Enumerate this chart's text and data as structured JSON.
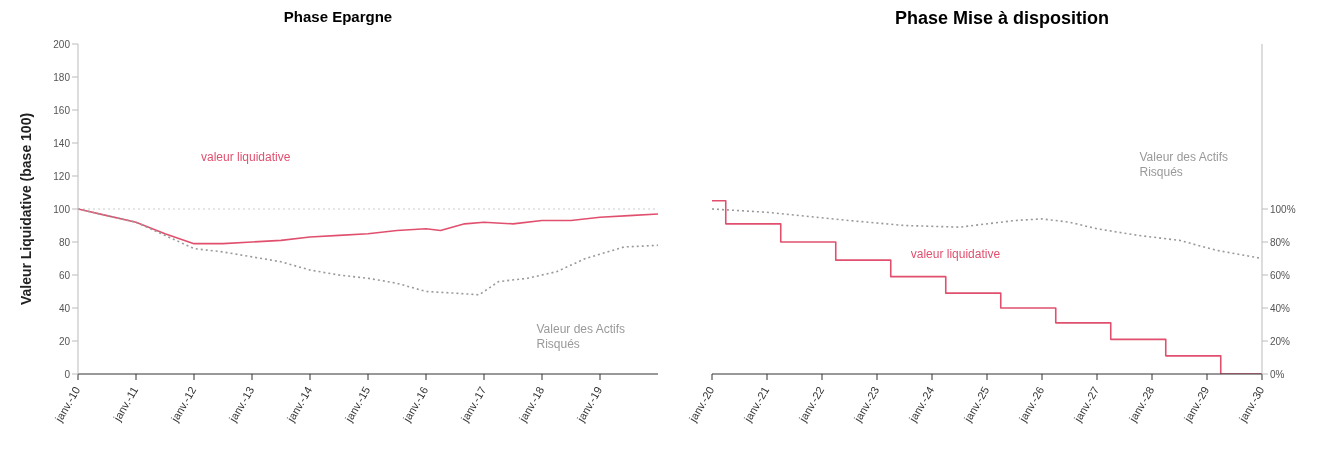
{
  "chart_data": [
    {
      "type": "line",
      "title": "Phase Epargne",
      "ylabel": "Valeur Liquidative (base 100)",
      "xlim": [
        "2010-01",
        "2020-01"
      ],
      "xticks": [
        {
          "value": "2010-01",
          "label": "janv.-10"
        },
        {
          "value": "2011-01",
          "label": "janv.-11"
        },
        {
          "value": "2012-01",
          "label": "janv.-12"
        },
        {
          "value": "2013-01",
          "label": "janv.-13"
        },
        {
          "value": "2014-01",
          "label": "janv.-14"
        },
        {
          "value": "2015-01",
          "label": "janv.-15"
        },
        {
          "value": "2016-01",
          "label": "janv.-16"
        },
        {
          "value": "2017-01",
          "label": "janv.-17"
        },
        {
          "value": "2018-01",
          "label": "janv.-18"
        },
        {
          "value": "2019-01",
          "label": "janv.-19"
        }
      ],
      "ylim": [
        0,
        200
      ],
      "yticks": [
        0,
        20,
        40,
        60,
        80,
        100,
        120,
        140,
        160,
        180,
        200
      ],
      "grid": false,
      "legend": false,
      "ref_lines": [
        {
          "axis": "y",
          "value": 100,
          "color": "#cccccc",
          "line_style": "dotted"
        }
      ],
      "series": [
        {
          "name": "valeur liquidative",
          "color": "#e0506e",
          "line_style": "solid",
          "x": [
            "2010-01",
            "2010-07",
            "2011-01",
            "2011-07",
            "2012-01",
            "2012-07",
            "2013-01",
            "2013-07",
            "2014-01",
            "2014-07",
            "2015-01",
            "2015-07",
            "2016-01",
            "2016-04",
            "2016-09",
            "2017-01",
            "2017-07",
            "2018-01",
            "2018-07",
            "2019-01",
            "2019-07",
            "2020-01"
          ],
          "values": [
            100,
            96,
            92,
            85,
            79,
            79,
            80,
            81,
            83,
            84,
            85,
            87,
            88,
            87,
            91,
            92,
            91,
            93,
            93,
            95,
            96,
            97
          ]
        },
        {
          "name": "Valeur des Actifs Risqués",
          "color": "#999999",
          "line_style": "dotted",
          "x": [
            "2010-01",
            "2011-01",
            "2012-01",
            "2012-07",
            "2013-01",
            "2013-07",
            "2014-01",
            "2014-07",
            "2015-01",
            "2015-07",
            "2016-01",
            "2016-07",
            "2016-12",
            "2017-04",
            "2017-10",
            "2018-04",
            "2018-10",
            "2019-06",
            "2020-01"
          ],
          "values": [
            100,
            92,
            76,
            74,
            71,
            68,
            63,
            60,
            58,
            55,
            50,
            49,
            48,
            56,
            58,
            62,
            70,
            77,
            78
          ]
        }
      ]
    },
    {
      "type": "step",
      "title": "Phase Mise à disposition",
      "xlim": [
        "2020-01",
        "2030-01"
      ],
      "xticks": [
        {
          "value": "2020-01",
          "label": "janv.-20"
        },
        {
          "value": "2021-01",
          "label": "janv.-21"
        },
        {
          "value": "2022-01",
          "label": "janv.-22"
        },
        {
          "value": "2023-01",
          "label": "janv.-23"
        },
        {
          "value": "2024-01",
          "label": "janv.-24"
        },
        {
          "value": "2025-01",
          "label": "janv.-25"
        },
        {
          "value": "2026-01",
          "label": "janv.-26"
        },
        {
          "value": "2027-01",
          "label": "janv.-27"
        },
        {
          "value": "2028-01",
          "label": "janv.-28"
        },
        {
          "value": "2029-01",
          "label": "janv.-29"
        },
        {
          "value": "2030-01",
          "label": "janv.-30"
        }
      ],
      "ylim": [
        0,
        200
      ],
      "yticks": [
        {
          "value": 0,
          "label": "0%"
        },
        {
          "value": 20,
          "label": "20%"
        },
        {
          "value": 40,
          "label": "40%"
        },
        {
          "value": 60,
          "label": "60%"
        },
        {
          "value": 80,
          "label": "80%"
        },
        {
          "value": 100,
          "label": "100%"
        }
      ],
      "grid": false,
      "legend": false,
      "series": [
        {
          "name": "valeur liquidative",
          "color": "#e0506e",
          "line_style": "solid",
          "x": [
            "2020-01",
            "2020-04",
            "2021-04",
            "2022-04",
            "2023-04",
            "2024-04",
            "2025-04",
            "2026-04",
            "2027-04",
            "2028-04",
            "2029-04",
            "2030-01"
          ],
          "values": [
            105,
            91,
            80,
            69,
            59,
            49,
            40,
            31,
            21,
            11,
            0,
            0
          ]
        },
        {
          "name": "Valeur des Actifs Risqués",
          "type": "line",
          "color": "#999999",
          "line_style": "dotted",
          "x": [
            "2020-01",
            "2021-01",
            "2022-07",
            "2023-07",
            "2024-07",
            "2025-07",
            "2026-01",
            "2026-07",
            "2027-01",
            "2027-10",
            "2028-07",
            "2029-03",
            "2030-01"
          ],
          "values": [
            100,
            98,
            93,
            90,
            89,
            93,
            94,
            92,
            88,
            84,
            81,
            75,
            70
          ]
        }
      ]
    }
  ]
}
